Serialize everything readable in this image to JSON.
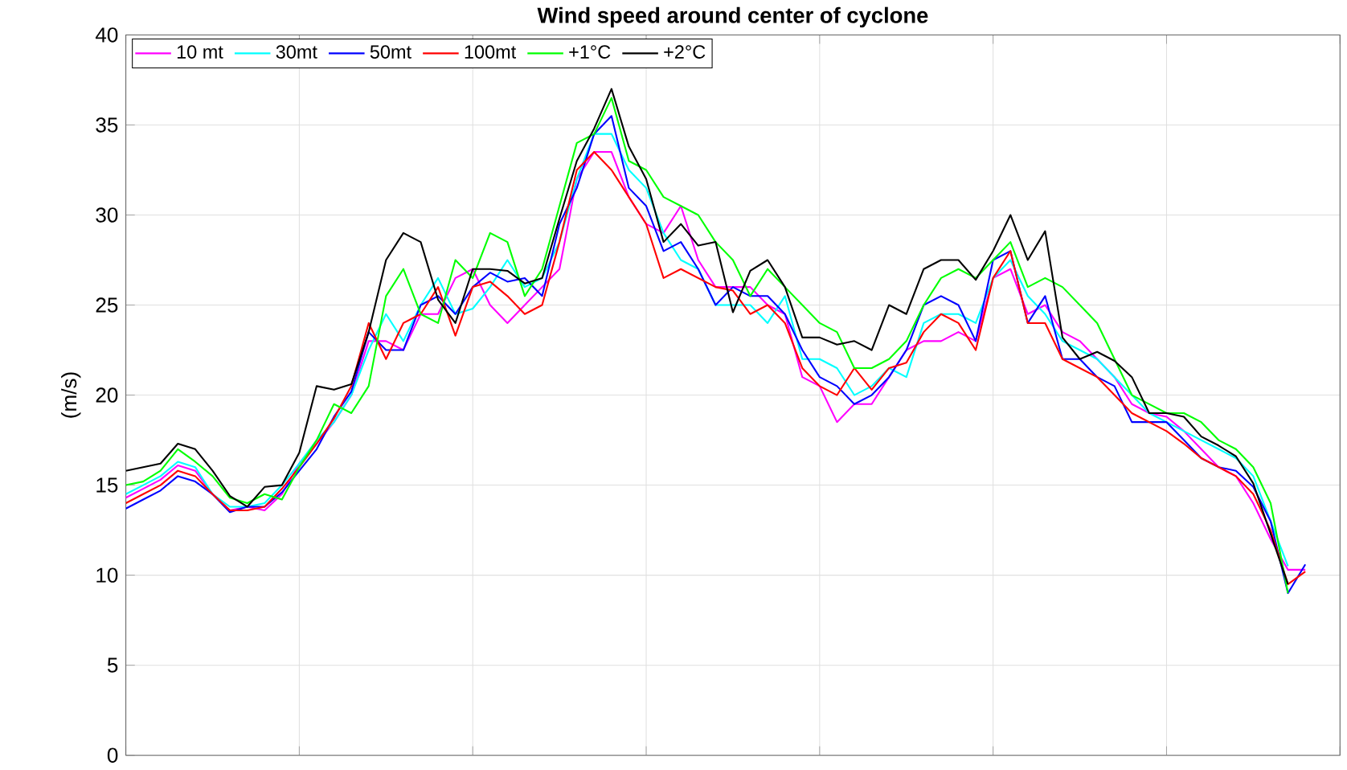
{
  "chart_data": {
    "type": "line",
    "title": "Wind speed around center of cyclone",
    "ylabel": "(m/s)",
    "categories": [
      null,
      null,
      null,
      null,
      null,
      null,
      null,
      null,
      null,
      null,
      null,
      null,
      null,
      null,
      null,
      null,
      null,
      null,
      null,
      null,
      null,
      null,
      null,
      null,
      null,
      null,
      null,
      null,
      null,
      null,
      null,
      null,
      null,
      null,
      null,
      null,
      null,
      null,
      null,
      null,
      null,
      null,
      null,
      null,
      null,
      null,
      null,
      null,
      null,
      null,
      null,
      null,
      null,
      null,
      null,
      null,
      null,
      null,
      null,
      null,
      null,
      null,
      null,
      null,
      null,
      null,
      null,
      null,
      null,
      null,
      null
    ],
    "series": [
      {
        "name": "10 mt",
        "color": "#ff00ff",
        "values": [
          14.3,
          14.8,
          15.3,
          16.1,
          15.8,
          14.5,
          13.6,
          13.8,
          13.6,
          14.5,
          16.2,
          17.3,
          18.5,
          20.0,
          23.0,
          23.0,
          22.5,
          24.5,
          24.5,
          26.5,
          27.0,
          25.0,
          24.0,
          25.0,
          26.0,
          27.0,
          32.0,
          33.5,
          33.5,
          31.0,
          29.5,
          29.0,
          30.5,
          27.5,
          26.0,
          26.0,
          26.0,
          25.0,
          24.5,
          21.0,
          20.5,
          18.5,
          19.5,
          19.5,
          21.0,
          22.5,
          23.0,
          23.0,
          23.5,
          23.0,
          26.5,
          27.0,
          24.5,
          25.0,
          23.5,
          23.0,
          22.0,
          21.0,
          19.5,
          19.0,
          18.8,
          18.0,
          17.0,
          16.0,
          15.5,
          14.0,
          12.0,
          10.3,
          10.3,
          null,
          null
        ]
      },
      {
        "name": "30mt",
        "color": "#00ffff",
        "values": [
          14.5,
          15.0,
          15.5,
          16.3,
          16.0,
          14.5,
          13.8,
          13.8,
          14.0,
          15.0,
          16.2,
          17.5,
          18.5,
          20.0,
          22.5,
          24.5,
          23.0,
          25.0,
          26.5,
          24.5,
          24.8,
          26.0,
          27.5,
          26.0,
          26.5,
          28.5,
          32.0,
          34.5,
          34.5,
          32.5,
          31.5,
          29.0,
          27.5,
          27.0,
          25.0,
          25.0,
          25.0,
          24.0,
          25.5,
          22.0,
          22.0,
          21.5,
          20.0,
          20.5,
          21.5,
          21.0,
          24.0,
          24.5,
          24.5,
          24.0,
          26.5,
          27.5,
          25.5,
          24.5,
          23.0,
          22.5,
          22.0,
          21.0,
          20.0,
          19.0,
          18.5,
          18.0,
          17.5,
          17.0,
          16.5,
          15.5,
          13.0,
          10.5,
          null,
          null,
          null
        ]
      },
      {
        "name": "50mt",
        "color": "#0000ff",
        "values": [
          13.7,
          14.2,
          14.7,
          15.5,
          15.2,
          14.5,
          13.5,
          13.8,
          13.8,
          14.6,
          15.8,
          17.0,
          18.8,
          20.2,
          23.5,
          22.5,
          22.5,
          25.0,
          25.5,
          24.5,
          26.0,
          26.8,
          26.3,
          26.5,
          25.5,
          29.5,
          31.5,
          34.5,
          35.5,
          31.5,
          30.5,
          28.0,
          28.5,
          27.0,
          25.0,
          26.0,
          25.5,
          25.5,
          24.5,
          22.5,
          21.0,
          20.5,
          19.5,
          20.0,
          21.0,
          22.5,
          25.0,
          25.5,
          25.0,
          23.0,
          27.5,
          28.0,
          24.0,
          25.5,
          22.0,
          22.0,
          21.0,
          20.5,
          18.5,
          18.5,
          18.5,
          17.5,
          16.5,
          16.0,
          15.8,
          14.9,
          13.0,
          9.0,
          10.6,
          null,
          null
        ]
      },
      {
        "name": "100mt",
        "color": "#ff0000",
        "values": [
          14.0,
          14.5,
          15.0,
          15.8,
          15.5,
          14.5,
          13.6,
          13.6,
          13.8,
          14.8,
          16.0,
          17.3,
          18.7,
          20.5,
          24.0,
          22.0,
          24.0,
          24.5,
          26.0,
          23.3,
          26.0,
          26.3,
          25.5,
          24.5,
          25.0,
          28.5,
          32.5,
          33.5,
          32.5,
          31.0,
          29.5,
          26.5,
          27.0,
          26.5,
          26.0,
          25.8,
          24.5,
          25.0,
          24.0,
          21.5,
          20.5,
          20.0,
          21.5,
          20.3,
          21.5,
          21.8,
          23.5,
          24.5,
          24.0,
          22.5,
          26.5,
          28.0,
          24.0,
          24.0,
          22.0,
          21.5,
          21.0,
          20.0,
          19.0,
          18.5,
          18.0,
          17.3,
          16.5,
          16.0,
          15.5,
          14.5,
          12.5,
          9.5,
          10.2,
          null,
          null
        ]
      },
      {
        "name": "+1°C",
        "color": "#00ff00",
        "values": [
          15.0,
          15.2,
          15.8,
          17.0,
          16.3,
          15.5,
          14.3,
          14.0,
          14.5,
          14.2,
          16.0,
          17.5,
          19.5,
          19.0,
          20.5,
          25.5,
          27.0,
          24.5,
          24.0,
          27.5,
          26.5,
          29.0,
          28.5,
          25.5,
          27.0,
          30.5,
          34.0,
          34.5,
          36.5,
          33.0,
          32.5,
          31.0,
          30.5,
          30.0,
          28.5,
          27.5,
          25.5,
          27.0,
          26.0,
          25.0,
          24.0,
          23.5,
          21.5,
          21.5,
          22.0,
          23.0,
          25.0,
          26.5,
          27.0,
          26.5,
          27.5,
          28.5,
          26.0,
          26.5,
          26.0,
          25.0,
          24.0,
          22.0,
          20.0,
          19.5,
          19.0,
          19.0,
          18.5,
          17.5,
          17.0,
          16.0,
          14.0,
          9.0,
          null,
          null,
          null
        ]
      },
      {
        "name": "+2°C",
        "color": "#000000",
        "values": [
          15.8,
          16.0,
          16.2,
          17.3,
          17.0,
          15.8,
          14.4,
          13.8,
          14.9,
          15.0,
          16.8,
          20.5,
          20.3,
          20.6,
          23.5,
          27.5,
          29.0,
          28.5,
          25.3,
          24.0,
          27.0,
          27.0,
          26.9,
          26.2,
          26.5,
          29.8,
          33.0,
          34.8,
          37.0,
          33.8,
          32.0,
          28.5,
          29.5,
          28.3,
          28.5,
          24.6,
          26.9,
          27.5,
          26.0,
          23.2,
          23.2,
          22.8,
          23.0,
          22.5,
          25.0,
          24.5,
          27.0,
          27.5,
          27.5,
          26.4,
          28.0,
          30.0,
          27.5,
          29.1,
          23.2,
          22.0,
          22.4,
          21.9,
          21.0,
          19.0,
          19.0,
          18.8,
          17.7,
          17.2,
          16.6,
          15.1,
          12.3,
          9.5,
          null,
          null,
          null
        ]
      }
    ],
    "ylim": [
      0,
      40
    ],
    "yticks": [
      0,
      5,
      10,
      15,
      20,
      25,
      30,
      35,
      40
    ],
    "grid": true,
    "legend": "top left",
    "tick_labels": "y",
    "line_style": "solid",
    "marker": "none"
  }
}
